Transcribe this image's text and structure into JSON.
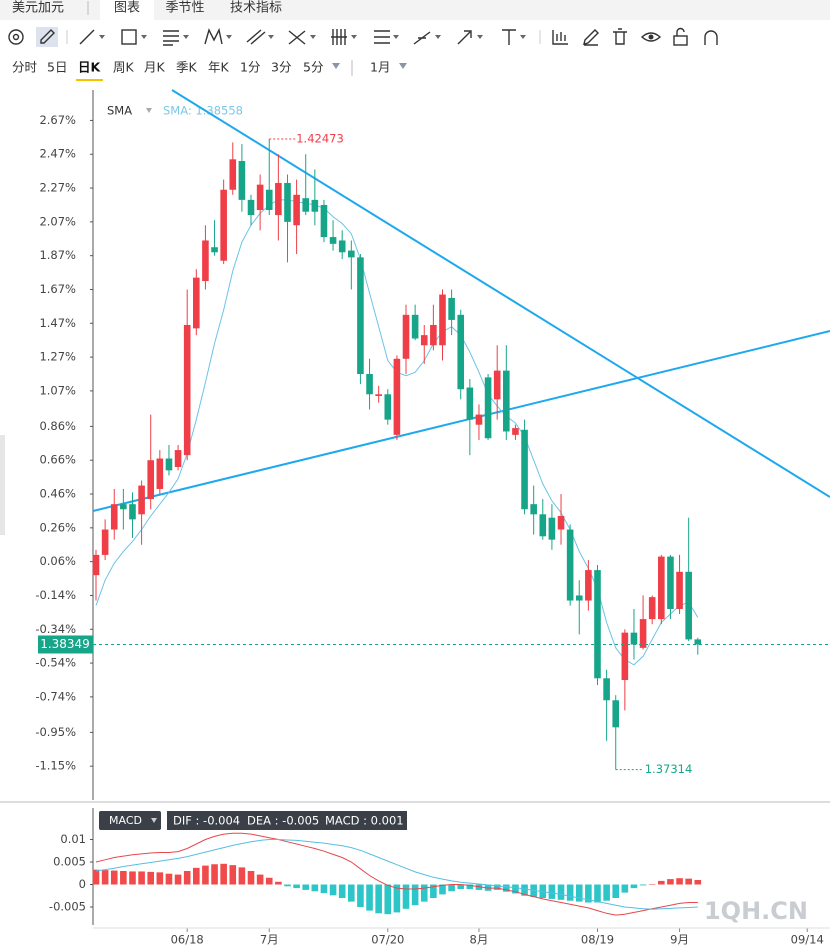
{
  "header": {
    "symbol": "美元加元",
    "tabs": [
      "图表",
      "季节性",
      "技术指标"
    ]
  },
  "periods": [
    "分时",
    "5日",
    "日K",
    "周K",
    "月K",
    "季K",
    "年K",
    "1分",
    "3分",
    "5分"
  ],
  "range": "1月",
  "watermark": "1QH.CN",
  "chart_data": [
    {
      "type": "candlestick",
      "indicator": "SMA",
      "indicator_readout": "SMA: 1.38558",
      "up_color": "#ef3e48",
      "down_color": "#17a589",
      "open": [
        -0.02,
        0.1,
        0.25,
        0.4,
        0.4,
        0.34,
        0.43,
        0.49,
        0.67,
        0.62,
        0.69,
        1.44,
        1.72,
        1.92,
        1.84,
        2.26,
        2.43,
        2.2,
        2.14,
        2.26,
        2.11,
        2.3,
        2.05,
        2.21,
        2.2,
        2.17,
        1.98,
        1.96,
        1.9,
        1.86,
        1.17,
        1.04,
        1.05,
        0.81,
        1.26,
        1.52,
        1.34,
        1.34,
        1.34,
        1.62,
        1.52,
        1.09,
        0.87,
        1.15,
        1.02,
        1.19,
        0.81,
        0.84,
        0.4,
        0.34,
        0.32,
        0.25,
        0.25,
        -0.14,
        -0.17,
        0.01,
        -0.63,
        -0.76,
        -0.64,
        -0.36,
        -0.45,
        -0.28,
        -0.28,
        0.09,
        -0.22,
        0.0,
        -0.4
      ],
      "high": [
        0.13,
        0.31,
        0.49,
        0.49,
        0.47,
        0.54,
        0.93,
        0.72,
        0.75,
        0.75,
        1.67,
        1.79,
        2.05,
        2.08,
        2.32,
        2.54,
        2.53,
        2.23,
        2.35,
        2.56,
        2.47,
        2.35,
        2.32,
        2.47,
        2.38,
        2.2,
        2.08,
        2.02,
        1.96,
        1.88,
        1.26,
        1.1,
        1.08,
        1.28,
        1.58,
        1.58,
        1.46,
        1.58,
        1.67,
        1.67,
        1.55,
        1.14,
        0.99,
        1.17,
        1.34,
        1.34,
        0.87,
        0.9,
        0.51,
        0.43,
        0.4,
        0.46,
        0.28,
        -0.05,
        0.07,
        0.04,
        -0.58,
        -0.73,
        -0.34,
        -0.22,
        -0.14,
        -0.14,
        0.1,
        0.1,
        0.1,
        0.32,
        -0.39
      ],
      "low": [
        -0.17,
        0.07,
        0.19,
        0.25,
        0.2,
        0.16,
        0.37,
        0.46,
        0.57,
        0.6,
        0.66,
        1.4,
        1.67,
        1.87,
        1.82,
        2.23,
        2.13,
        2.05,
        2.02,
        2.11,
        1.96,
        1.83,
        1.88,
        2.11,
        2.05,
        1.95,
        1.9,
        1.85,
        1.67,
        1.11,
        0.96,
        1.0,
        0.87,
        0.78,
        1.17,
        1.37,
        1.23,
        1.31,
        1.25,
        1.4,
        1.02,
        0.69,
        0.78,
        0.78,
        0.9,
        0.78,
        0.78,
        0.34,
        0.22,
        0.19,
        0.13,
        0.16,
        -0.2,
        -0.37,
        -0.23,
        -0.67,
        -1.0,
        -1.17,
        -0.82,
        -0.52,
        -0.46,
        -0.31,
        -0.31,
        -0.28,
        -0.25,
        -0.41,
        -0.49
      ],
      "close": [
        0.1,
        0.25,
        0.4,
        0.37,
        0.31,
        0.51,
        0.66,
        0.67,
        0.6,
        0.72,
        1.46,
        1.74,
        1.96,
        1.89,
        2.26,
        2.44,
        2.2,
        2.11,
        2.29,
        2.14,
        2.3,
        2.07,
        2.23,
        2.13,
        2.13,
        1.98,
        1.94,
        1.89,
        1.86,
        1.17,
        1.05,
        1.05,
        0.9,
        1.26,
        1.52,
        1.38,
        1.4,
        1.46,
        1.64,
        1.49,
        1.08,
        0.9,
        0.93,
        0.79,
        1.19,
        0.83,
        0.85,
        0.37,
        0.34,
        0.21,
        0.19,
        0.33,
        -0.17,
        -0.17,
        0.01,
        -0.63,
        -0.76,
        -0.92,
        -0.36,
        -0.43,
        -0.28,
        -0.15,
        0.09,
        -0.22,
        0.0,
        -0.4,
        -0.43
      ],
      "sma": {
        "color": "#6cc3e6",
        "values": [
          -0.2,
          -0.05,
          0.05,
          0.12,
          0.18,
          0.25,
          0.33,
          0.4,
          0.47,
          0.55,
          0.7,
          0.9,
          1.12,
          1.35,
          1.55,
          1.78,
          1.95,
          2.05,
          2.12,
          2.17,
          2.2,
          2.2,
          2.19,
          2.18,
          2.17,
          2.15,
          2.1,
          2.06,
          2.0,
          1.85,
          1.65,
          1.45,
          1.25,
          1.18,
          1.16,
          1.18,
          1.25,
          1.35,
          1.42,
          1.45,
          1.4,
          1.3,
          1.18,
          1.05,
          0.98,
          0.92,
          0.88,
          0.8,
          0.66,
          0.52,
          0.42,
          0.35,
          0.25,
          0.12,
          0.02,
          -0.1,
          -0.3,
          -0.45,
          -0.52,
          -0.55,
          -0.5,
          -0.4,
          -0.3,
          -0.25,
          -0.2,
          -0.18,
          -0.27
        ]
      },
      "annotations": {
        "high": "1.42473",
        "low": "1.37314",
        "last": "1.38349"
      },
      "ylim": [
        -1.35,
        2.85
      ],
      "yticks": [
        {
          "value": 2.67,
          "label": "2.67%"
        },
        {
          "value": 2.47,
          "label": "2.47%"
        },
        {
          "value": 2.27,
          "label": "2.27%"
        },
        {
          "value": 2.07,
          "label": "2.07%"
        },
        {
          "value": 1.87,
          "label": "1.87%"
        },
        {
          "value": 1.67,
          "label": "1.67%"
        },
        {
          "value": 1.47,
          "label": "1.47%"
        },
        {
          "value": 1.27,
          "label": "1.27%"
        },
        {
          "value": 1.07,
          "label": "1.07%"
        },
        {
          "value": 0.86,
          "label": "0.86%"
        },
        {
          "value": 0.66,
          "label": "0.66%"
        },
        {
          "value": 0.46,
          "label": "0.46%"
        },
        {
          "value": 0.26,
          "label": "0.26%"
        },
        {
          "value": 0.06,
          "label": "0.06%"
        },
        {
          "value": -0.14,
          "label": "-0.14%"
        },
        {
          "value": -0.34,
          "label": "-0.34%"
        },
        {
          "value": -0.54,
          "label": "-0.54%"
        },
        {
          "value": -0.74,
          "label": "-0.74%"
        },
        {
          "value": -0.95,
          "label": "-0.95%"
        },
        {
          "value": -1.15,
          "label": "-1.15%"
        }
      ],
      "xlim": [
        -0.33,
        80.5
      ]
    },
    {
      "type": "macd",
      "indicator": "MACD",
      "readout": [
        "DIF : -0.004",
        "DEA : -0.005",
        "MACD : 0.001"
      ],
      "up_color": "#f04a4a",
      "down_color": "#2cc5c8",
      "histogram": [
        0.0033,
        0.0032,
        0.0031,
        0.003,
        0.0029,
        0.0029,
        0.0028,
        0.0027,
        0.0024,
        0.0022,
        0.003,
        0.0037,
        0.0042,
        0.0045,
        0.0046,
        0.0043,
        0.0038,
        0.003,
        0.0022,
        0.0015,
        0.0006,
        -0.0004,
        -0.0008,
        -0.0012,
        -0.0015,
        -0.0019,
        -0.0024,
        -0.003,
        -0.0038,
        -0.005,
        -0.0058,
        -0.0064,
        -0.0066,
        -0.0062,
        -0.0054,
        -0.0046,
        -0.0038,
        -0.003,
        -0.0022,
        -0.0015,
        -0.001,
        -0.001,
        -0.0012,
        -0.0014,
        -0.0012,
        -0.0016,
        -0.002,
        -0.0025,
        -0.0028,
        -0.003,
        -0.0032,
        -0.0034,
        -0.0036,
        -0.0038,
        -0.004,
        -0.004,
        -0.0036,
        -0.003,
        -0.0018,
        -0.0008,
        -0.0002,
        0.0001,
        0.0008,
        0.0012,
        0.0014,
        0.0013,
        0.001
      ],
      "series": [
        {
          "color": "#e8474c",
          "values": [
            0.005,
            0.0055,
            0.006,
            0.0063,
            0.0066,
            0.0068,
            0.007,
            0.0071,
            0.0071,
            0.0073,
            0.008,
            0.009,
            0.01,
            0.0107,
            0.0112,
            0.0114,
            0.0114,
            0.0112,
            0.0108,
            0.0104,
            0.01,
            0.0095,
            0.009,
            0.0085,
            0.008,
            0.0074,
            0.0067,
            0.006,
            0.005,
            0.0035,
            0.002,
            0.0008,
            -0.0002,
            -0.0008,
            -0.001,
            -0.001,
            -0.0008,
            -0.0005,
            -0.0002,
            0,
            0,
            -0.0002,
            -0.0005,
            -0.0008,
            -0.0008,
            -0.0012,
            -0.0016,
            -0.0022,
            -0.0027,
            -0.0032,
            -0.0036,
            -0.004,
            -0.0044,
            -0.0048,
            -0.0052,
            -0.0058,
            -0.0064,
            -0.0068,
            -0.0066,
            -0.0062,
            -0.0058,
            -0.0054,
            -0.005,
            -0.0046,
            -0.0042,
            -0.004,
            -0.004
          ]
        },
        {
          "color": "#55bfe3",
          "values": [
            0.003,
            0.0033,
            0.0036,
            0.004,
            0.0043,
            0.0046,
            0.0049,
            0.0052,
            0.0055,
            0.0058,
            0.0062,
            0.0067,
            0.0072,
            0.0077,
            0.0082,
            0.0087,
            0.0091,
            0.0095,
            0.0098,
            0.01,
            0.01,
            0.0099,
            0.0098,
            0.0096,
            0.0094,
            0.0092,
            0.0089,
            0.0086,
            0.0082,
            0.0076,
            0.0068,
            0.006,
            0.0052,
            0.0044,
            0.0036,
            0.0028,
            0.0022,
            0.0016,
            0.0012,
            0.0008,
            0.0005,
            0.0003,
            0.0001,
            -0.0001,
            -0.0003,
            -0.0005,
            -0.0007,
            -0.001,
            -0.0013,
            -0.0016,
            -0.0019,
            -0.0022,
            -0.0026,
            -0.003,
            -0.0034,
            -0.0038,
            -0.0042,
            -0.0046,
            -0.005,
            -0.0052,
            -0.0054,
            -0.0055,
            -0.0054,
            -0.0053,
            -0.0052,
            -0.0051,
            -0.005
          ]
        }
      ],
      "ylim": [
        -0.009,
        0.017
      ],
      "yticks": [
        0.01,
        0.005,
        0,
        -0.005
      ],
      "xlim": [
        -0.33,
        80.5
      ],
      "xticks": [
        {
          "value": 10,
          "label": "06/18"
        },
        {
          "value": 19,
          "label": "7月"
        },
        {
          "value": 32,
          "label": "07/20"
        },
        {
          "value": 42,
          "label": "8月"
        },
        {
          "value": 55,
          "label": "08/19"
        },
        {
          "value": 64,
          "label": "9月"
        },
        {
          "value": 78,
          "label": "09/14"
        }
      ]
    }
  ]
}
